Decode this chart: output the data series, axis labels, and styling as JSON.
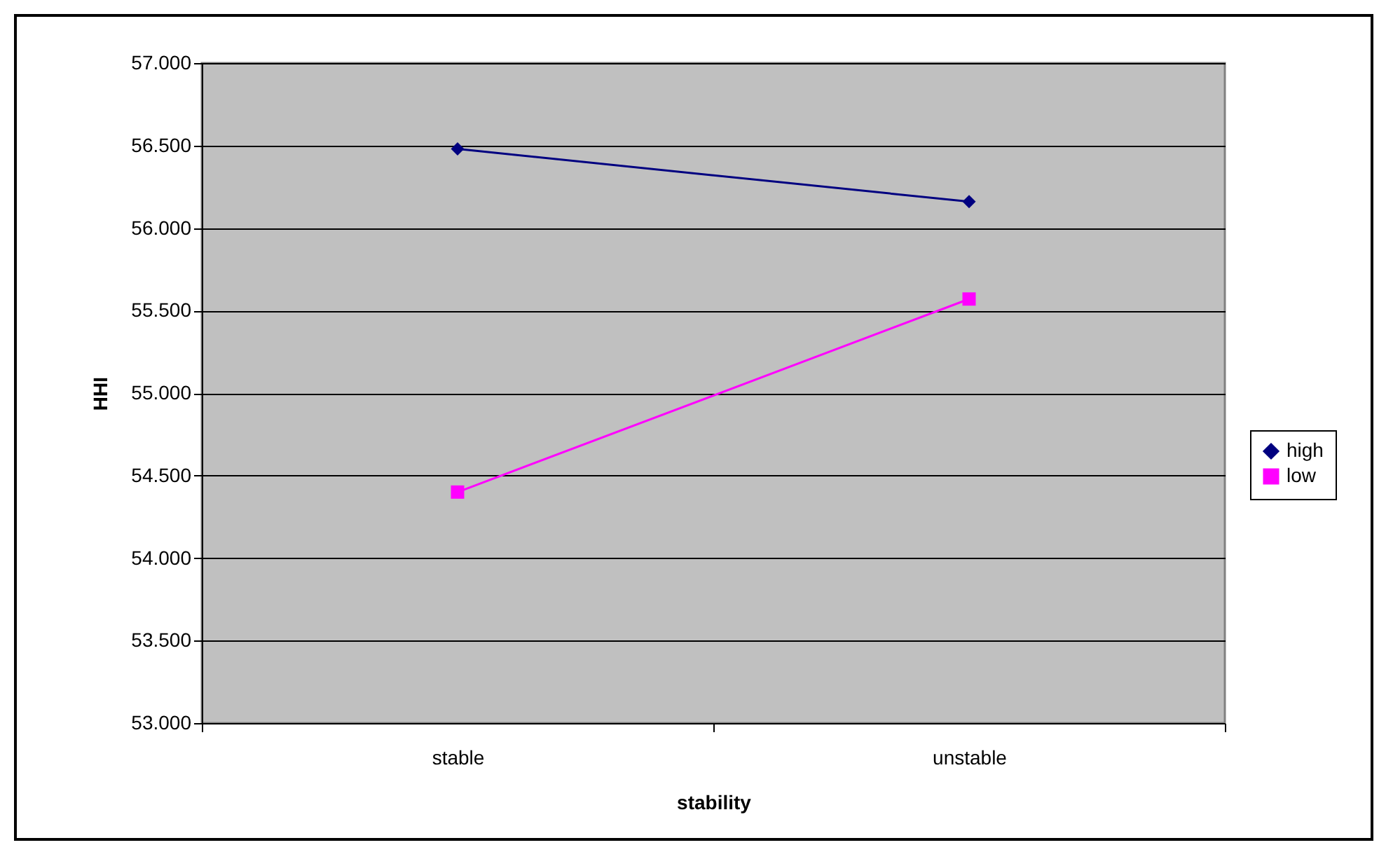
{
  "chart_data": {
    "type": "line",
    "xlabel": "stability",
    "ylabel": "HHI",
    "categories": [
      "stable",
      "unstable"
    ],
    "series": [
      {
        "name": "high",
        "color": "#000080",
        "marker": "diamond",
        "values": [
          56.48,
          56.16
        ]
      },
      {
        "name": "low",
        "color": "#ff00ff",
        "marker": "square",
        "values": [
          54.4,
          55.57
        ]
      }
    ],
    "ylim": [
      53,
      57
    ],
    "yticks": [
      {
        "value": 53,
        "label": "53.000"
      },
      {
        "value": 53.5,
        "label": "53.500"
      },
      {
        "value": 54,
        "label": "54.000"
      },
      {
        "value": 54.5,
        "label": "54.500"
      },
      {
        "value": 55,
        "label": "55.000"
      },
      {
        "value": 55.5,
        "label": "55.500"
      },
      {
        "value": 56,
        "label": "56.000"
      },
      {
        "value": 56.5,
        "label": "56.500"
      },
      {
        "value": 57,
        "label": "57.000"
      }
    ],
    "grid": "y",
    "legend": "right",
    "line_style": "solid"
  }
}
